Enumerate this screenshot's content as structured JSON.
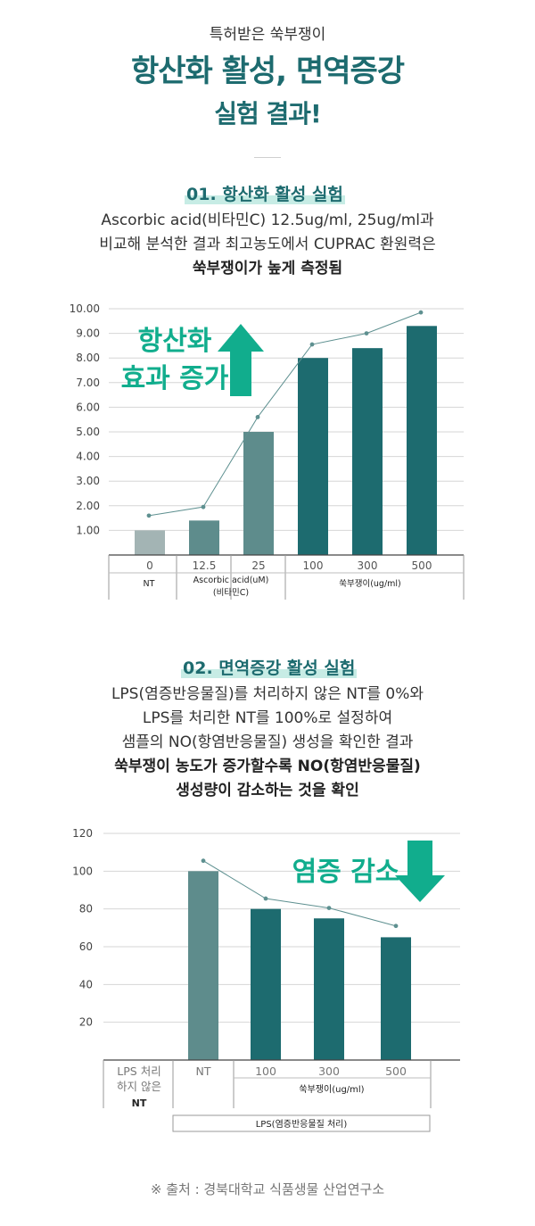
{
  "header": {
    "subtitle": "특허받은 쑥부쟁이",
    "title_line1": "항산화 활성, 면역증강",
    "title_line2": "실험 결과!"
  },
  "section1": {
    "heading": "01. 항산화 활성 실험",
    "desc_line1": "Ascorbic acid(비타민C) 12.5ug/ml, 25ug/ml과",
    "desc_line2": "비교해 분석한 결과 최고농도에서 CUPRAC 환원력은",
    "desc_line3": "쑥부쟁이가 높게 측정됨"
  },
  "section2": {
    "heading": "02. 면역증강 활성 실험",
    "desc_line1": "LPS(염증반응물질)를 처리하지 않은 NT를 0%와",
    "desc_line2": "LPS를 처리한 NT를 100%로 설정하여",
    "desc_line3": "샘플의 NO(항염반응물질) 생성을 확인한 결과",
    "desc_line4": "쑥부쟁이 농도가 증가할수록 NO(항염반응물질)",
    "desc_line5": "생성량이 감소하는 것을 확인"
  },
  "source": "※ 출처 : 경북대학교 식품생물 산업연구소",
  "colors": {
    "teal_dark": "#1d6b6f",
    "teal_mid": "#5e8c8c",
    "teal_light": "#a3b4b4",
    "arrow_green": "#11ad8d"
  },
  "chart_data": [
    {
      "type": "bar",
      "categories": [
        "0",
        "12.5",
        "25",
        "100",
        "300",
        "500"
      ],
      "values": [
        1.0,
        1.4,
        5.0,
        8.0,
        8.4,
        9.3
      ],
      "line_values": [
        1.6,
        1.95,
        5.6,
        8.55,
        9.0,
        9.85
      ],
      "bar_colors": [
        "#a3b4b4",
        "#5e8c8c",
        "#5e8c8c",
        "#1d6b6f",
        "#1d6b6f",
        "#1d6b6f"
      ],
      "yticks": [
        "1.00",
        "2.00",
        "3.00",
        "4.00",
        "5.00",
        "6.00",
        "7.00",
        "8.00",
        "9.00",
        "10.00"
      ],
      "ylim": [
        0,
        10
      ],
      "group_labels": [
        "NT",
        "Ascorbic acid(uM)",
        "(비타민C)",
        "쑥부쟁이(ug/ml)"
      ],
      "annotation_line1": "항산화",
      "annotation_line2": "효과 증가",
      "grid": true
    },
    {
      "type": "bar",
      "categories": [
        "LPS 처리",
        "NT",
        "100",
        "300",
        "500"
      ],
      "category_extra": [
        "하지 않은",
        "NT"
      ],
      "values": [
        0,
        100,
        80,
        75,
        65
      ],
      "line_values": [
        105.5,
        85.5,
        80.5,
        71
      ],
      "bar_colors": [
        "#5e8c8c",
        "#5e8c8c",
        "#1d6b6f",
        "#1d6b6f",
        "#1d6b6f"
      ],
      "yticks": [
        "20",
        "40",
        "60",
        "80",
        "100",
        "120"
      ],
      "ylim": [
        0,
        120
      ],
      "group_labels": [
        "쑥부쟁이(ug/ml)",
        "LPS(염증반응물질 처리)"
      ],
      "annotation": "염증 감소",
      "grid": true
    }
  ]
}
